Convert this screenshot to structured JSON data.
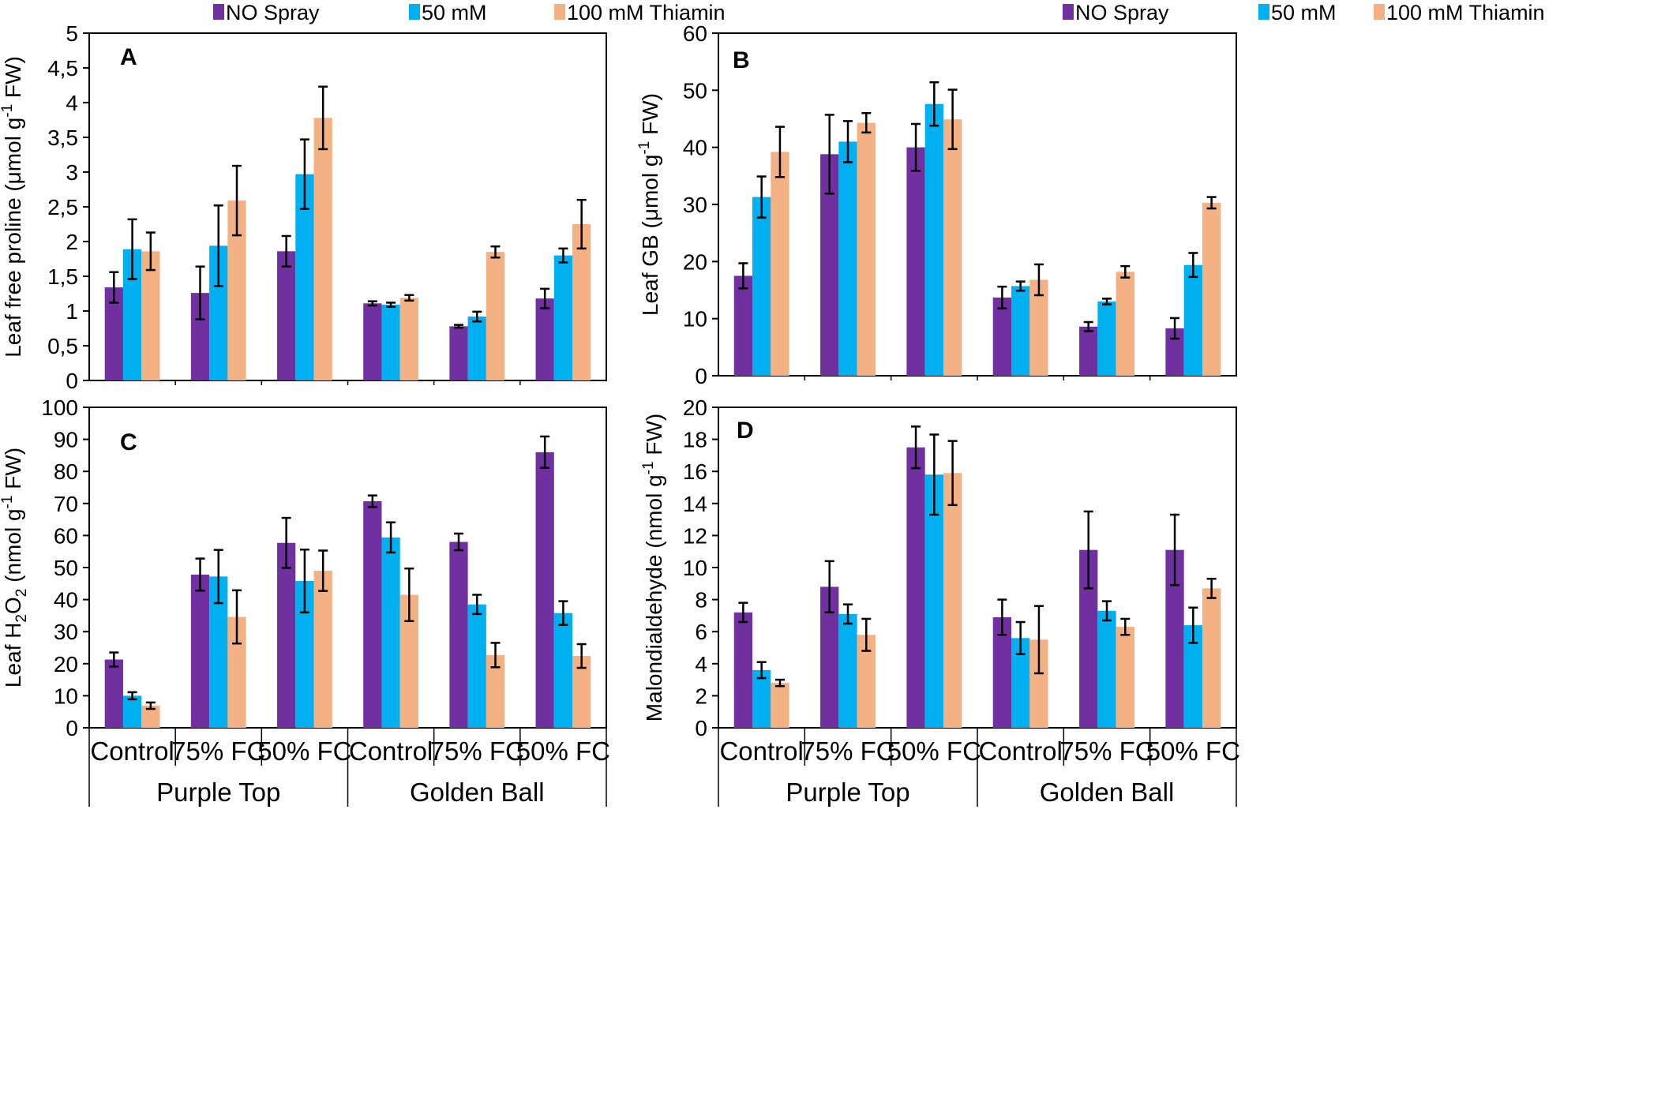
{
  "colors": {
    "no_spray": "#7030a0",
    "mm50": "#00b0f0",
    "mm100": "#f4b183"
  },
  "legend": [
    "NO Spray",
    "50 mM",
    "100 mM Thiamin"
  ],
  "group_labels": [
    "Control",
    "75% FC",
    "50% FC",
    "Control",
    "75% FC",
    "50% FC"
  ],
  "cultivars": [
    "Purple Top",
    "Golden Ball"
  ],
  "chart_data": [
    {
      "id": "A",
      "type": "bar",
      "panel_label": "A",
      "ylabel_main": "Leaf free proline (μmol g",
      "ylabel_sup": "-1",
      "ylabel_tail": " FW)",
      "ylim": [
        0,
        5
      ],
      "ticks": [
        0,
        0.5,
        1,
        1.5,
        2,
        2.5,
        3,
        3.5,
        4,
        4.5,
        5
      ],
      "tick_labels": [
        "0",
        "0,5",
        "1",
        "1,5",
        "2",
        "2,5",
        "3",
        "3,5",
        "4",
        "4,5",
        "5"
      ],
      "series": [
        {
          "name": "NO Spray",
          "values": [
            1.34,
            1.26,
            1.86,
            1.11,
            0.78,
            1.18
          ],
          "errors": [
            0.22,
            0.38,
            0.22,
            0.03,
            0.02,
            0.14
          ]
        },
        {
          "name": "50 mM",
          "values": [
            1.89,
            1.94,
            2.97,
            1.09,
            0.92,
            1.8
          ],
          "errors": [
            0.43,
            0.58,
            0.5,
            0.03,
            0.07,
            0.1
          ]
        },
        {
          "name": "100 mM Thiamin",
          "values": [
            1.86,
            2.59,
            3.78,
            1.19,
            1.85,
            2.25
          ],
          "errors": [
            0.27,
            0.5,
            0.45,
            0.04,
            0.08,
            0.35
          ]
        }
      ]
    },
    {
      "id": "B",
      "type": "bar",
      "panel_label": "B",
      "ylabel_main": "Leaf GB (μmol g",
      "ylabel_sup": "-1",
      "ylabel_tail": " FW)",
      "ylim": [
        0,
        60
      ],
      "ticks": [
        0,
        10,
        20,
        30,
        40,
        50,
        60
      ],
      "tick_labels": [
        "0",
        "10",
        "20",
        "30",
        "40",
        "50",
        "60"
      ],
      "series": [
        {
          "name": "NO Spray",
          "values": [
            17.5,
            38.8,
            40,
            13.7,
            8.6,
            8.3
          ],
          "errors": [
            2.2,
            6.9,
            4.1,
            1.9,
            0.8,
            1.8
          ]
        },
        {
          "name": "50 mM",
          "values": [
            31.3,
            41,
            47.6,
            15.7,
            13,
            19.4
          ],
          "errors": [
            3.6,
            3.6,
            3.8,
            0.8,
            0.5,
            2.1
          ]
        },
        {
          "name": "100 mM Thiamin",
          "values": [
            39.2,
            44.3,
            44.9,
            16.8,
            18.2,
            30.3
          ],
          "errors": [
            4.4,
            1.7,
            5.2,
            2.7,
            1,
            1
          ]
        }
      ]
    },
    {
      "id": "C",
      "type": "bar",
      "panel_label": "C",
      "ylabel_main": "Leaf H",
      "ylabel_sub": "2",
      "ylabel_mid": "O",
      "ylabel_sub2": "2",
      "ylabel_main2": " (nmol g",
      "ylabel_sup": "-1",
      "ylabel_tail": " FW)",
      "ylim": [
        0,
        100
      ],
      "ticks": [
        0,
        10,
        20,
        30,
        40,
        50,
        60,
        70,
        80,
        90,
        100
      ],
      "tick_labels": [
        "0",
        "10",
        "20",
        "30",
        "40",
        "50",
        "60",
        "70",
        "80",
        "90",
        "100"
      ],
      "series": [
        {
          "name": "NO Spray",
          "values": [
            21.3,
            47.8,
            57.7,
            70.7,
            58,
            86
          ],
          "errors": [
            2.2,
            5,
            7.8,
            1.8,
            2.6,
            4.9
          ]
        },
        {
          "name": "50 mM",
          "values": [
            10,
            47.2,
            45.8,
            59.4,
            38.5,
            35.8
          ],
          "errors": [
            1.1,
            8.3,
            9.8,
            4.7,
            3,
            3.7
          ]
        },
        {
          "name": "100 mM Thiamin",
          "values": [
            6.9,
            34.6,
            49,
            41.5,
            22.7,
            22.4
          ],
          "errors": [
            1,
            8.3,
            6.3,
            8.2,
            3.8,
            3.7
          ]
        }
      ]
    },
    {
      "id": "D",
      "type": "bar",
      "panel_label": "D",
      "ylabel_main": "Malondialdehyde (nmol g",
      "ylabel_sup": "-1",
      "ylabel_tail": " FW)",
      "ylim": [
        0,
        20
      ],
      "ticks": [
        0,
        2,
        4,
        6,
        8,
        10,
        12,
        14,
        16,
        18,
        20
      ],
      "tick_labels": [
        "0",
        "2",
        "4",
        "6",
        "8",
        "10",
        "12",
        "14",
        "16",
        "18",
        "20"
      ],
      "series": [
        {
          "name": "NO Spray",
          "values": [
            7.2,
            8.8,
            17.5,
            6.9,
            11.1,
            11.1
          ],
          "errors": [
            0.6,
            1.6,
            1.3,
            1.1,
            2.4,
            2.2
          ]
        },
        {
          "name": "50 mM",
          "values": [
            3.6,
            7.1,
            15.8,
            5.6,
            7.3,
            6.4
          ],
          "errors": [
            0.5,
            0.6,
            2.5,
            1,
            0.6,
            1.1
          ]
        },
        {
          "name": "100 mM Thiamin",
          "values": [
            2.8,
            5.8,
            15.9,
            5.5,
            6.3,
            8.7
          ],
          "errors": [
            0.2,
            1,
            2,
            2.1,
            0.5,
            0.6
          ]
        }
      ]
    }
  ]
}
